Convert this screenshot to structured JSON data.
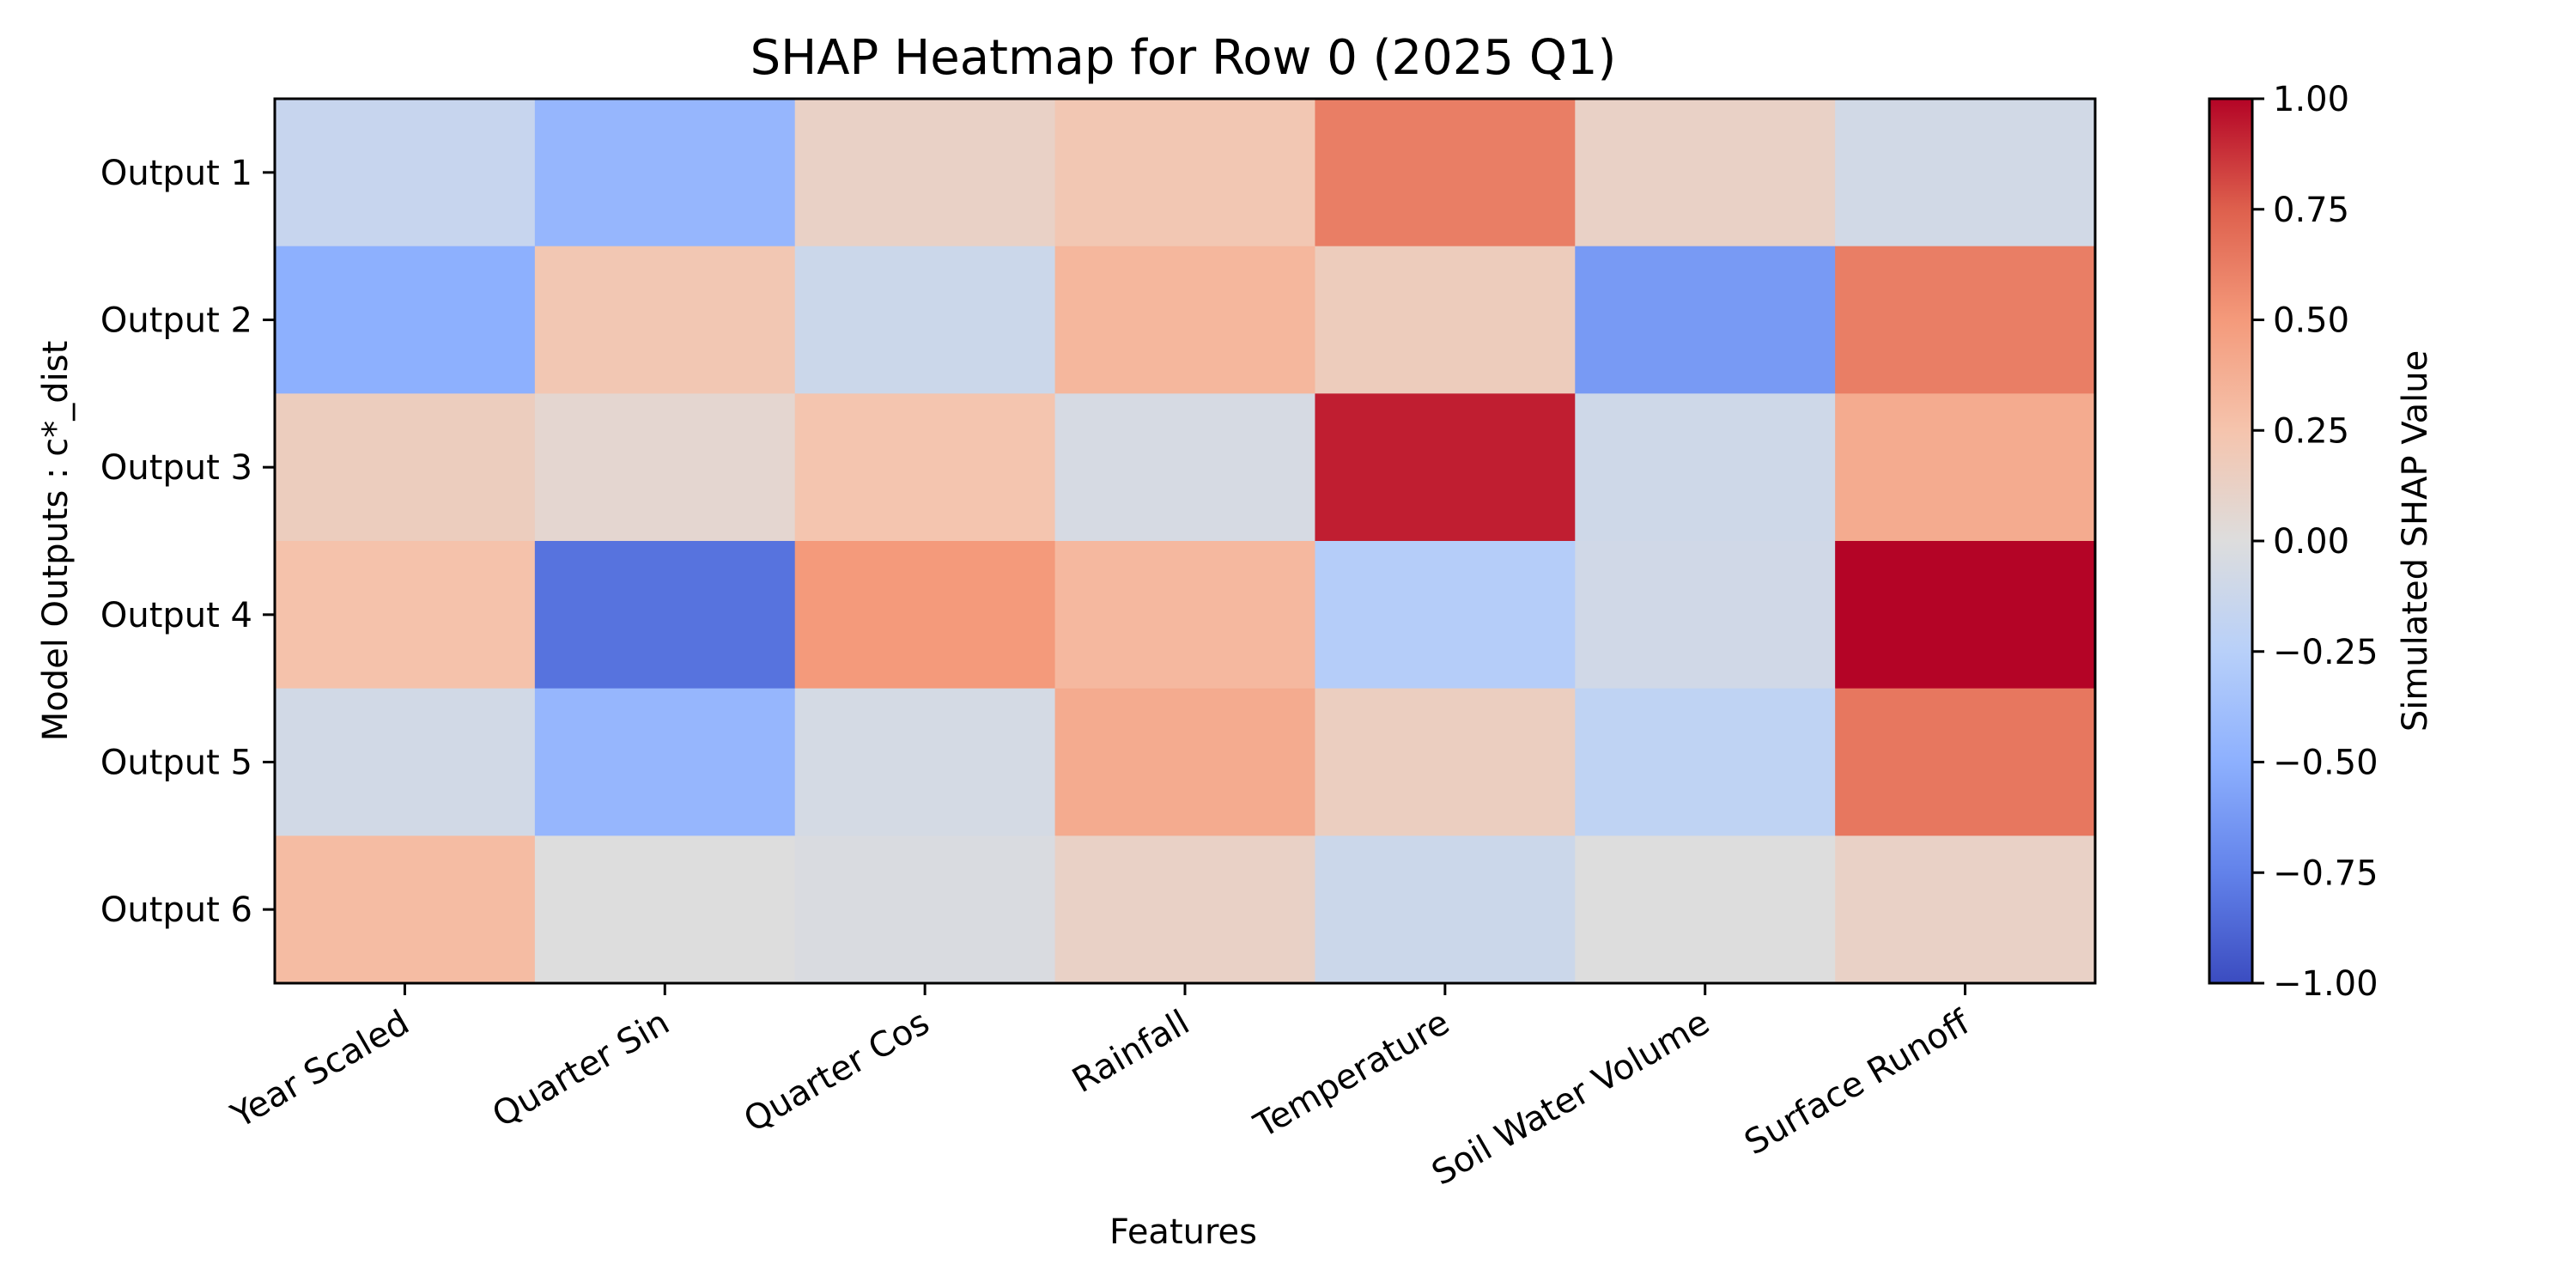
{
  "chart_data": {
    "type": "heatmap",
    "title": "SHAP Heatmap for Row 0 (2025 Q1)",
    "xlabel": "Features",
    "ylabel": "Model Outputs : c*_dist",
    "x_categories": [
      "Year Scaled",
      "Quarter Sin",
      "Quarter Cos",
      "Rainfall",
      "Temperature",
      "Soil Water Volume",
      "Surface Runoff"
    ],
    "y_categories": [
      "Output 1",
      "Output 2",
      "Output 3",
      "Output 4",
      "Output 5",
      "Output 6"
    ],
    "values": [
      [
        -0.15,
        -0.45,
        0.12,
        0.22,
        0.62,
        0.12,
        -0.08
      ],
      [
        -0.5,
        0.22,
        -0.12,
        0.33,
        0.17,
        -0.62,
        0.62
      ],
      [
        0.16,
        0.07,
        0.24,
        -0.05,
        0.93,
        -0.1,
        0.4
      ],
      [
        0.26,
        -0.82,
        0.5,
        0.32,
        -0.27,
        -0.09,
        1.0
      ],
      [
        -0.08,
        -0.45,
        -0.06,
        0.4,
        0.15,
        -0.2,
        0.65
      ],
      [
        0.3,
        0.0,
        -0.03,
        0.12,
        -0.12,
        0.0,
        0.12
      ]
    ],
    "colorbar": {
      "label": "Simulated SHAP Value",
      "range": [
        -1.0,
        1.0
      ],
      "ticks": [
        "1.00",
        "0.75",
        "0.50",
        "0.25",
        "0.00",
        "−0.25",
        "−0.50",
        "−0.75",
        "−1.00"
      ],
      "colormap": "coolwarm"
    },
    "grid": false
  }
}
